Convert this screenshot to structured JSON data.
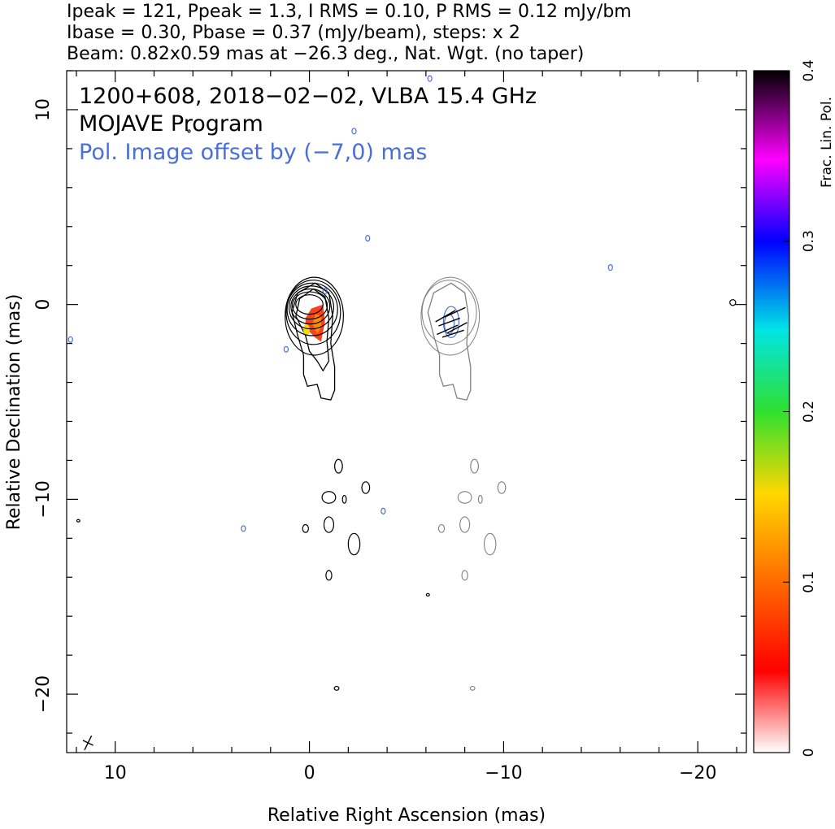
{
  "header": {
    "line1": "Ipeak = 121, Ppeak = 1.3, I RMS = 0.10, P RMS = 0.12 mJy/bm",
    "line2": "Ibase = 0.30, Pbase = 0.37 (mJy/beam), steps: x 2",
    "line3": "Beam: 0.82x0.59 mas at −26.3 deg., Nat. Wgt. (no taper)"
  },
  "chart_data": {
    "type": "contour",
    "title": "1200+608, 2018−02−02, VLBA 15.4 GHz",
    "subtitle": "MOJAVE Program",
    "annotation": "Pol. Image offset by (−7,0) mas",
    "xlabel": "Relative Right Ascension (mas)",
    "ylabel": "Relative Declination (mas)",
    "xlim": [
      12.5,
      -22.5
    ],
    "ylim": [
      -23,
      12
    ],
    "xticks": [
      {
        "v": 10,
        "label": "10"
      },
      {
        "v": 0,
        "label": "0"
      },
      {
        "v": -10,
        "label": "−10"
      },
      {
        "v": -20,
        "label": "−20"
      }
    ],
    "yticks": [
      {
        "v": 10,
        "label": "10"
      },
      {
        "v": 0,
        "label": "0"
      },
      {
        "v": -10,
        "label": "−10"
      },
      {
        "v": -20,
        "label": "−20"
      }
    ],
    "beam": {
      "major": 0.82,
      "minor": 0.59,
      "pa": -26.3,
      "x": 11.4,
      "y": -22.5
    },
    "colorbar": {
      "label": "Frac. Lin. Pol.",
      "range": [
        0,
        0.4
      ],
      "ticks": [
        {
          "v": 0,
          "label": "0"
        },
        {
          "v": 0.1,
          "label": "0.1"
        },
        {
          "v": 0.2,
          "label": "0.2"
        },
        {
          "v": 0.3,
          "label": "0.3"
        },
        {
          "v": 0.4,
          "label": "0.4"
        }
      ]
    },
    "colors": {
      "stokes_i": "#000000",
      "pol_i": "#808080",
      "pol_blue": "#4a6fd6"
    },
    "core_contours": [
      {
        "rx": 0.7,
        "ry": 0.5,
        "cx": 0.0,
        "cy": 0.0
      },
      {
        "rx": 0.9,
        "ry": 0.7,
        "cx": -0.02,
        "cy": -0.05
      },
      {
        "rx": 1.0,
        "ry": 0.9,
        "cx": -0.05,
        "cy": -0.1
      },
      {
        "rx": 1.15,
        "ry": 1.1,
        "cx": -0.1,
        "cy": -0.15
      },
      {
        "rx": 1.3,
        "ry": 1.35,
        "cx": -0.15,
        "cy": -0.25
      },
      {
        "rx": 1.4,
        "ry": 1.65,
        "cx": -0.2,
        "cy": -0.4
      },
      {
        "rx": 1.5,
        "ry": 2.0,
        "cx": -0.25,
        "cy": -0.6
      }
    ],
    "jet_contour": [
      [
        0.6,
        0.6
      ],
      [
        -0.3,
        1.1
      ],
      [
        -1.0,
        0.6
      ],
      [
        -1.2,
        -0.6
      ],
      [
        -1.1,
        -2.0
      ],
      [
        -1.3,
        -3.2
      ],
      [
        -1.3,
        -4.4
      ],
      [
        -1.1,
        -4.9
      ],
      [
        -0.6,
        -4.8
      ],
      [
        -0.4,
        -4.1
      ],
      [
        0.1,
        -4.2
      ],
      [
        0.3,
        -3.6
      ],
      [
        0.3,
        -2.6
      ],
      [
        0.6,
        -1.6
      ],
      [
        0.9,
        -0.4
      ]
    ],
    "jet_contour2": [
      [
        0.5,
        0.3
      ],
      [
        -0.2,
        0.8
      ],
      [
        -0.8,
        0.4
      ],
      [
        -1.0,
        -0.7
      ],
      [
        -0.9,
        -1.9
      ],
      [
        -1.0,
        -2.9
      ],
      [
        -0.7,
        -3.4
      ],
      [
        -0.4,
        -2.9
      ],
      [
        0.0,
        -2.4
      ],
      [
        0.2,
        -1.6
      ],
      [
        0.7,
        -0.6
      ]
    ],
    "pol_region": [
      [
        -0.1,
        -0.2
      ],
      [
        -0.7,
        0.0
      ],
      [
        -0.8,
        -0.9
      ],
      [
        -0.6,
        -1.9
      ],
      [
        -0.3,
        -1.7
      ],
      [
        0.2,
        -1.2
      ],
      [
        0.2,
        -0.7
      ]
    ],
    "pol_region_inner": [
      [
        -0.3,
        -0.5
      ],
      [
        -0.6,
        -0.6
      ],
      [
        -0.6,
        -1.2
      ],
      [
        -0.4,
        -1.5
      ],
      [
        -0.15,
        -1.0
      ]
    ],
    "noise_blobs": [
      {
        "x": -1.5,
        "y": -8.3,
        "rx": 0.2,
        "ry": 0.35
      },
      {
        "x": -1.0,
        "y": -9.9,
        "rx": 0.35,
        "ry": 0.3
      },
      {
        "x": -1.8,
        "y": -10.0,
        "rx": 0.1,
        "ry": 0.2
      },
      {
        "x": -2.9,
        "y": -9.4,
        "rx": 0.2,
        "ry": 0.3
      },
      {
        "x": 0.2,
        "y": -11.5,
        "rx": 0.15,
        "ry": 0.2
      },
      {
        "x": -1.0,
        "y": -11.3,
        "rx": 0.25,
        "ry": 0.4
      },
      {
        "x": -2.3,
        "y": -12.3,
        "rx": 0.3,
        "ry": 0.55
      },
      {
        "x": -1.0,
        "y": -13.9,
        "rx": 0.15,
        "ry": 0.25
      },
      {
        "x": -1.4,
        "y": -19.7,
        "rx": 0.12,
        "ry": 0.1
      },
      {
        "x": 6.2,
        "y": 8.9,
        "rx": 0.05,
        "ry": 0.05
      },
      {
        "x": 11.9,
        "y": -11.1,
        "rx": 0.08,
        "ry": 0.05
      },
      {
        "x": -6.1,
        "y": -14.9,
        "rx": 0.08,
        "ry": 0.05
      },
      {
        "x": -21.8,
        "y": 0.1,
        "rx": 0.15,
        "ry": 0.15
      }
    ],
    "blue_specks": [
      {
        "x": -0.8,
        "y": 0.7
      },
      {
        "x": 1.2,
        "y": -2.3
      },
      {
        "x": -2.3,
        "y": 8.9
      },
      {
        "x": -3.0,
        "y": 3.4
      },
      {
        "x": -15.5,
        "y": 1.9
      },
      {
        "x": 3.4,
        "y": -11.5
      },
      {
        "x": -3.8,
        "y": -10.6
      },
      {
        "x": -6.2,
        "y": 11.6
      },
      {
        "x": 12.3,
        "y": -1.8
      }
    ],
    "evpa_sticks": [
      {
        "x": -7.5,
        "y": -0.4,
        "a": 25
      },
      {
        "x": -7.0,
        "y": -0.6,
        "a": 30
      },
      {
        "x": -7.2,
        "y": -0.9,
        "a": 20
      },
      {
        "x": -7.6,
        "y": -1.2,
        "a": 28
      },
      {
        "x": -7.1,
        "y": -1.3,
        "a": 24
      },
      {
        "x": -7.4,
        "y": -1.5,
        "a": 18
      }
    ]
  }
}
